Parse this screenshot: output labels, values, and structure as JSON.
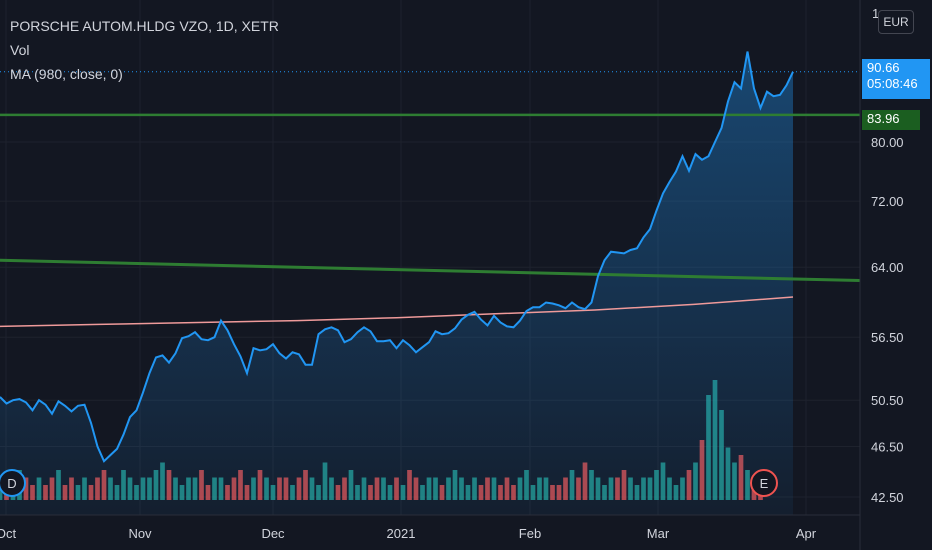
{
  "header": {
    "symbol_title": "PORSCHE AUTOM.HLDG VZO, 1D, XETR",
    "vol_label": "Vol",
    "ma_label": "MA (980, close, 0)",
    "currency": "EUR",
    "top_tick_fragment": "1"
  },
  "price_tags": {
    "last_price": "90.66",
    "countdown": "05:08:46",
    "level_price": "83.96"
  },
  "colors": {
    "background": "#131722",
    "price_line": "#2196f3",
    "ma_line": "#ef9a9a",
    "trend_line": "#2e7d32",
    "vol_up": "#26a69a",
    "vol_down": "#ef5350"
  },
  "chart_data": {
    "type": "area",
    "y_ticks": [
      "80.00",
      "72.00",
      "64.00",
      "56.50",
      "50.50",
      "46.50",
      "42.50"
    ],
    "x_ticks": [
      "Oct",
      "Nov",
      "Dec",
      "2021",
      "Feb",
      "Mar",
      "Apr"
    ],
    "y_scale": "log",
    "grid": true,
    "markers": [
      {
        "label": "D"
      },
      {
        "label": "E"
      }
    ],
    "series": [
      {
        "name": "price",
        "values": [
          50.8,
          50.2,
          50.5,
          50.6,
          50.3,
          49.6,
          50.5,
          50.1,
          49.3,
          50.4,
          50.0,
          49.5,
          50.0,
          50.1,
          48.5,
          46.5,
          45.3,
          45.8,
          46.3,
          47.5,
          49.0,
          49.6,
          51.2,
          53.0,
          54.5,
          54.7,
          54.0,
          54.9,
          56.4,
          56.6,
          57.0,
          56.3,
          56.2,
          56.5,
          58.2,
          57.2,
          55.8,
          54.6,
          53.0,
          55.4,
          55.2,
          55.3,
          55.8,
          54.9,
          54.4,
          55.0,
          54.8,
          53.8,
          53.8,
          56.8,
          57.3,
          57.5,
          57.2,
          56.0,
          56.3,
          57.0,
          57.5,
          57.1,
          56.1,
          56.1,
          56.2,
          55.4,
          56.2,
          55.7,
          55.0,
          55.5,
          56.0,
          57.1,
          56.8,
          56.9,
          57.4,
          58.3,
          58.8,
          59.1,
          58.3,
          57.7,
          58.7,
          58.0,
          57.6,
          57.5,
          58.2,
          59.2,
          59.6,
          59.6,
          60.1,
          60.0,
          59.8,
          59.5,
          60.1,
          59.6,
          59.4,
          60.1,
          63.0,
          64.8,
          65.8,
          65.7,
          65.6,
          66.0,
          66.2,
          67.5,
          68.5,
          70.8,
          73.0,
          74.5,
          75.9,
          78.0,
          76.0,
          78.3,
          77.5,
          78.0,
          80.0,
          82.0,
          86.0,
          89.0,
          88.0,
          94.0,
          88.0,
          85.0,
          87.5,
          86.8,
          87.0,
          88.5,
          90.66
        ]
      },
      {
        "name": "MA (980, close, 0)",
        "x_range": [
          "Oct",
          "Mar"
        ],
        "values": [
          57.6,
          57.8,
          58.0,
          58.2,
          58.5,
          58.9,
          59.3,
          59.9,
          60.7
        ]
      },
      {
        "name": "volume",
        "values": [
          2,
          3,
          2,
          4,
          3,
          2,
          3,
          2,
          3,
          4,
          2,
          3,
          2,
          3,
          2,
          3,
          4,
          3,
          2,
          4,
          3,
          2,
          3,
          3,
          4,
          5,
          4,
          3,
          2,
          3,
          3,
          4,
          2,
          3,
          3,
          2,
          3,
          4,
          2,
          3,
          4,
          3,
          2,
          3,
          3,
          2,
          3,
          4,
          3,
          2,
          5,
          3,
          2,
          3,
          4,
          2,
          3,
          2,
          3,
          3,
          2,
          3,
          2,
          4,
          3,
          2,
          3,
          3,
          2,
          3,
          4,
          3,
          2,
          3,
          2,
          3,
          3,
          2,
          3,
          2,
          3,
          4,
          2,
          3,
          3,
          2,
          2,
          3,
          4,
          3,
          5,
          4,
          3,
          2,
          3,
          3,
          4,
          3,
          2,
          3,
          3,
          4,
          5,
          3,
          2,
          3,
          4,
          5,
          8,
          14,
          16,
          12,
          7,
          5,
          6,
          4,
          3,
          3
        ]
      }
    ],
    "horizontal_levels": [
      83.96
    ],
    "trend_line": {
      "from": {
        "x": "Oct",
        "y": 64.8
      },
      "to": {
        "x": "Apr",
        "y": 62.5
      }
    }
  }
}
